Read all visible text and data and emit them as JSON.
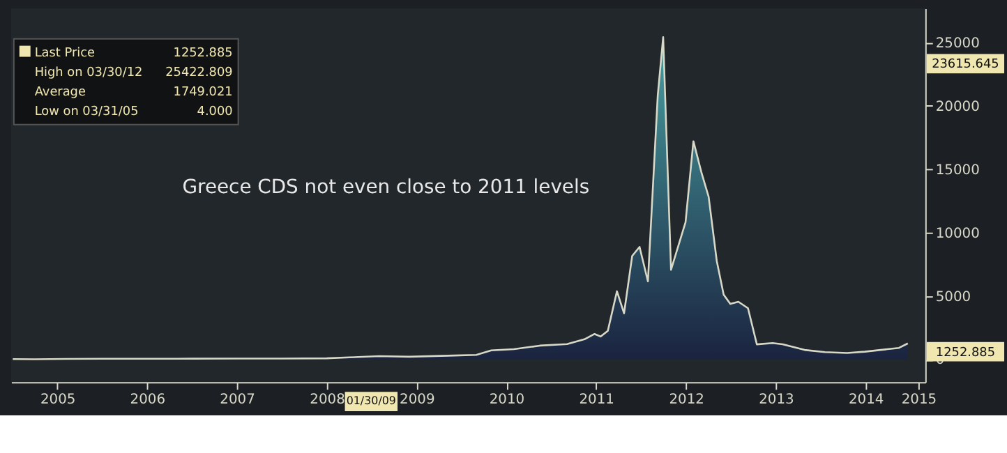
{
  "chart_data": {
    "type": "area",
    "x": [
      "2005-01-01",
      "2005-03-31",
      "2005-08-01",
      "2006-01-01",
      "2006-07-01",
      "2007-01-01",
      "2007-07-01",
      "2008-01-01",
      "2008-07-01",
      "2008-10-01",
      "2009-01-30",
      "2009-06-01",
      "2009-12-01",
      "2010-03-01",
      "2010-05-01",
      "2010-08-01",
      "2010-11-15",
      "2011-03-05",
      "2011-05-15",
      "2011-06-25",
      "2011-07-20",
      "2011-08-18",
      "2011-09-24",
      "2011-10-23",
      "2011-11-25",
      "2011-12-25",
      "2012-01-28",
      "2012-03-08",
      "2012-03-30",
      "2012-05-01",
      "2012-06-29",
      "2012-07-31",
      "2012-09-01",
      "2012-10-01",
      "2012-11-03",
      "2012-12-01",
      "2012-12-28",
      "2013-01-30",
      "2013-03-10",
      "2013-04-15",
      "2013-06-18",
      "2013-07-29",
      "2013-10-26",
      "2014-01-17",
      "2014-04-17",
      "2014-06-28",
      "2014-11-14",
      "2014-12-20"
    ],
    "series": [
      {
        "name": "Last Price",
        "color": "#d8d8c8",
        "values": [
          20,
          4,
          30,
          40,
          40,
          50,
          60,
          60,
          80,
          150,
          250,
          200,
          300,
          350,
          700,
          800,
          1080,
          1200,
          1580,
          2000,
          1800,
          2250,
          5370,
          3630,
          8160,
          8870,
          6150,
          20830,
          25422.809,
          7060,
          10820,
          17210,
          14790,
          12830,
          7760,
          5110,
          4370,
          4540,
          4030,
          1180,
          1280,
          1180,
          740,
          570,
          500,
          600,
          900,
          1252.885
        ]
      }
    ],
    "xlim": [
      "2004-12-25",
      "2015-03-01"
    ],
    "xticks": [
      {
        "value": "2005-07-01",
        "label": "2005"
      },
      {
        "value": "2006-07-01",
        "label": "2006"
      },
      {
        "value": "2007-07-01",
        "label": "2007"
      },
      {
        "value": "2008-07-01",
        "label": "2008"
      },
      {
        "value": "2009-07-01",
        "label": "2009"
      },
      {
        "value": "2010-07-01",
        "label": "2010"
      },
      {
        "value": "2011-07-01",
        "label": "2011"
      },
      {
        "value": "2012-07-01",
        "label": "2012"
      },
      {
        "value": "2013-07-01",
        "label": "2013"
      },
      {
        "value": "2014-07-01",
        "label": "2014"
      },
      {
        "value": "2015-02-01",
        "label": "2015"
      }
    ],
    "ylim": [
      -1800,
      27700
    ],
    "yticks": [
      0,
      5000,
      10000,
      15000,
      20000,
      25000
    ],
    "grid": false,
    "legend": "top left",
    "annotations": [
      "Greece CDS not even close to 2011 levels",
      "1252.885",
      "High on 03/30/12",
      "25422.809",
      "Average",
      "1749.021",
      "Low on 03/31/05",
      "4.000",
      "23615.645",
      "1252.885",
      "01/30/09"
    ]
  }
}
